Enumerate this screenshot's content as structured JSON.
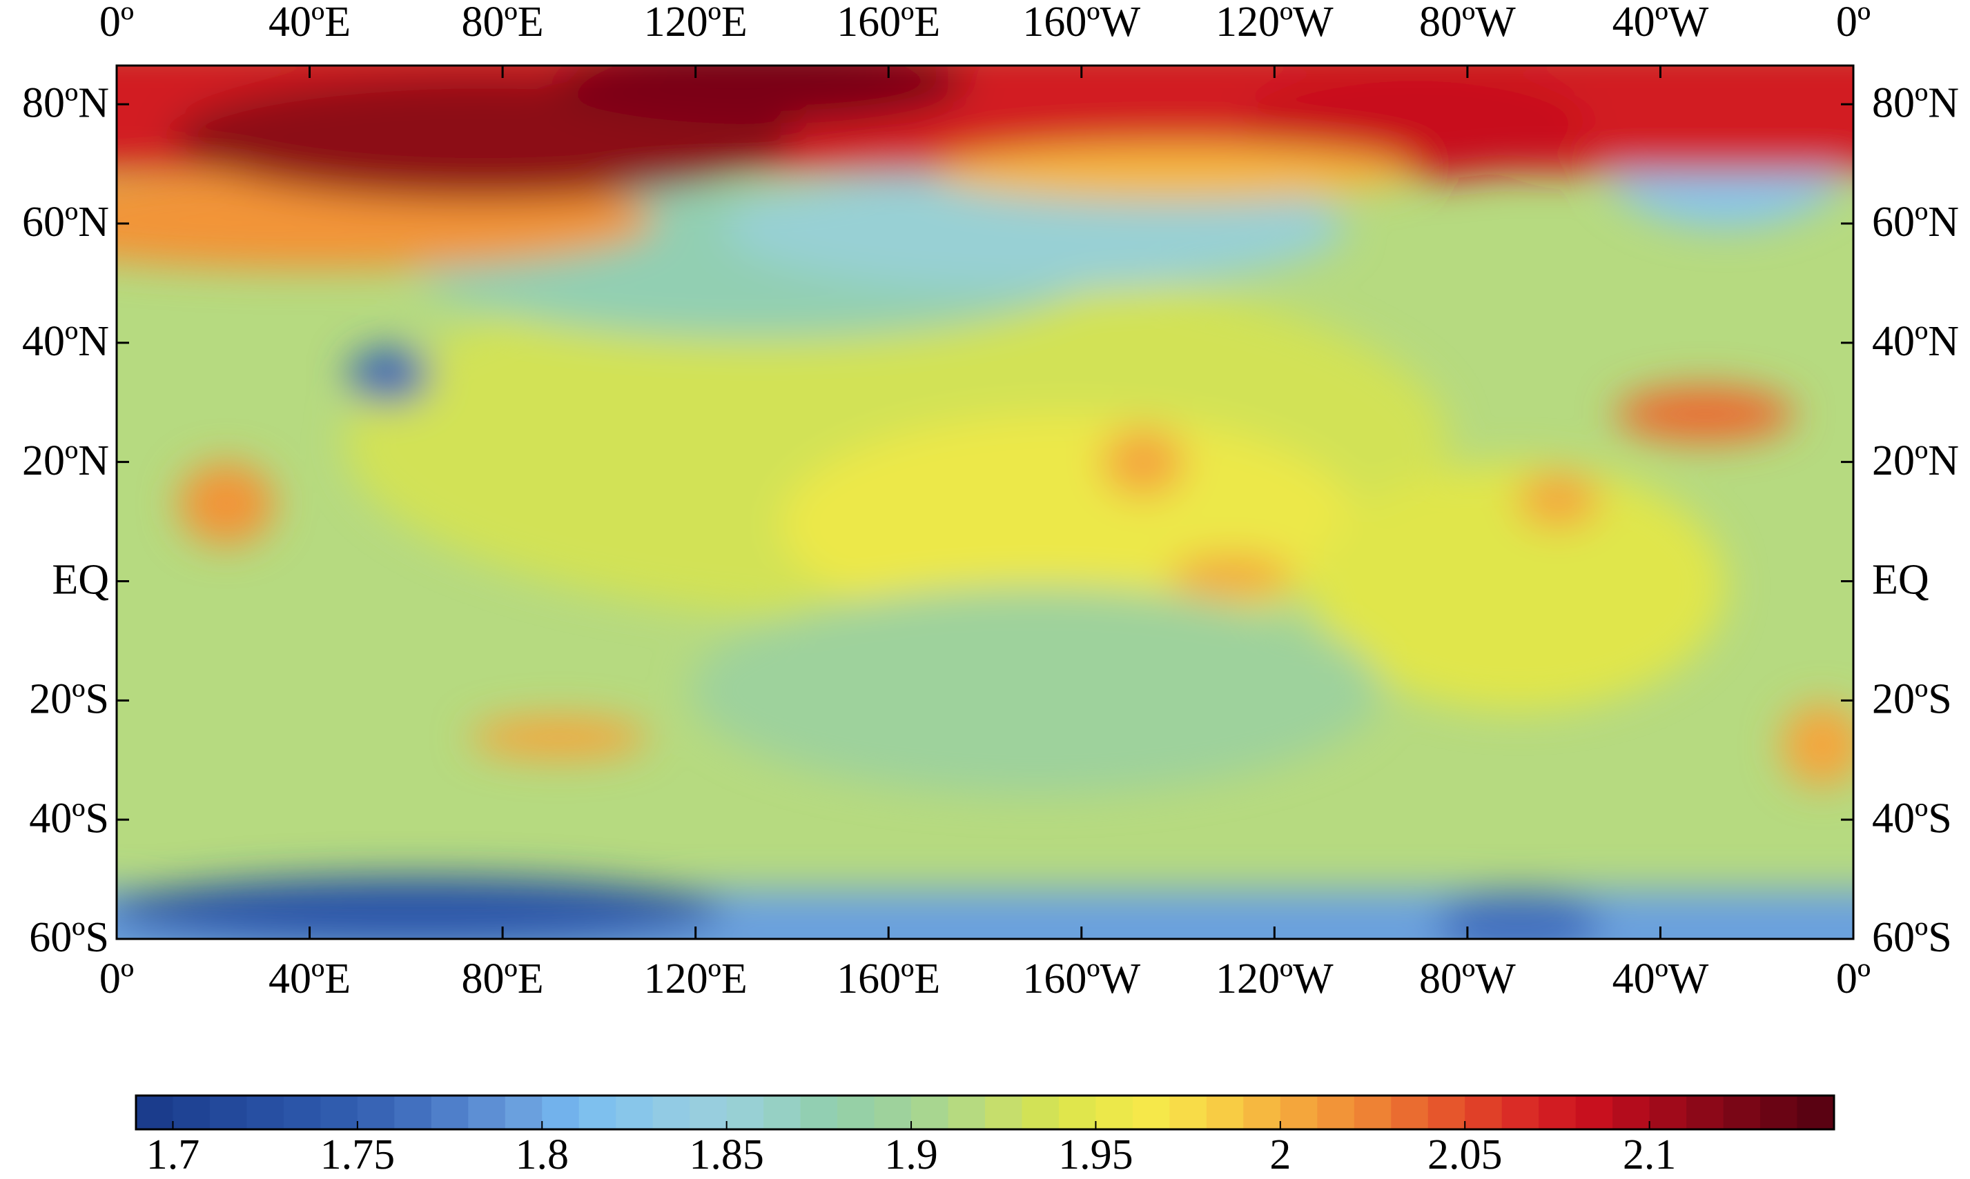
{
  "map": {
    "xlim": [
      0,
      360
    ],
    "ylim": [
      -60,
      86.5
    ],
    "xticks": [
      {
        "value": 0,
        "label": "0º"
      },
      {
        "value": 40,
        "label": "40ºE"
      },
      {
        "value": 80,
        "label": "80ºE"
      },
      {
        "value": 120,
        "label": "120ºE"
      },
      {
        "value": 160,
        "label": "160ºE"
      },
      {
        "value": 200,
        "label": "160ºW"
      },
      {
        "value": 240,
        "label": "120ºW"
      },
      {
        "value": 280,
        "label": "80ºW"
      },
      {
        "value": 320,
        "label": "40ºW"
      },
      {
        "value": 360,
        "label": "0º"
      }
    ],
    "yticks": [
      {
        "value": 80,
        "label": "80ºN"
      },
      {
        "value": 60,
        "label": "60ºN"
      },
      {
        "value": 40,
        "label": "40ºN"
      },
      {
        "value": 20,
        "label": "20ºN"
      },
      {
        "value": 0,
        "label": "EQ"
      },
      {
        "value": -20,
        "label": "20ºS"
      },
      {
        "value": -40,
        "label": "40ºS"
      },
      {
        "value": -60,
        "label": "60ºS"
      }
    ]
  },
  "colorbar": {
    "lim": [
      1.69,
      2.15
    ],
    "ticks": [
      1.7,
      1.75,
      1.8,
      1.85,
      1.9,
      1.95,
      2,
      2.05,
      2.1
    ],
    "colors": [
      "#1b3c8c",
      "#1f4394",
      "#23499b",
      "#274fa2",
      "#2b55a8",
      "#305cae",
      "#3864b5",
      "#4270bf",
      "#4f7fca",
      "#5d8fd4",
      "#6aa0de",
      "#72b2ec",
      "#7ec0ee",
      "#88c6ea",
      "#92cbe4",
      "#98cede",
      "#98d0d4",
      "#96d0c4",
      "#92cfb2",
      "#96d0a6",
      "#9ed29c",
      "#a8d690",
      "#b6da80",
      "#c6de6c",
      "#d2e256",
      "#e0e64c",
      "#ece84a",
      "#f6e84a",
      "#f8dc48",
      "#f8cc44",
      "#f6b840",
      "#f4a63c",
      "#f29438",
      "#ee8234",
      "#ea6c30",
      "#e6562c",
      "#e04028",
      "#da2c26",
      "#d21c22",
      "#c8101e",
      "#b40c1c",
      "#a00a1a",
      "#8c0818",
      "#7a0616",
      "#6a0414",
      "#5a0212"
    ]
  }
}
